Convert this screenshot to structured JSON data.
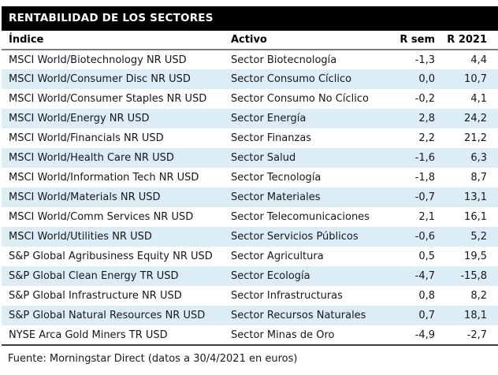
{
  "title": "RENTABILIDAD DE LOS SECTORES",
  "source_note": "Fuente: Morningstar Direct (datos a 30/4/2021 en euros)",
  "colors": {
    "title_bar_bg": "#000000",
    "title_bar_text": "#ffffff",
    "row_alt_bg": "#dcedf6",
    "body_text": "#16161e",
    "header_rule": "#7f7f7f",
    "bottom_rule": "#404040"
  },
  "chart_data": {
    "type": "table",
    "title": "RENTABILIDAD DE LOS SECTORES",
    "columns": [
      "Índice",
      "Activo",
      "R sem",
      "R 2021"
    ],
    "rows": [
      {
        "indice": "MSCI World/Biotechnology NR USD",
        "activo": "Sector Biotecnología",
        "r_sem": "-1,3",
        "r_2021": "4,4"
      },
      {
        "indice": "MSCI World/Consumer Disc NR USD",
        "activo": "Sector Consumo Cíclico",
        "r_sem": "0,0",
        "r_2021": "10,7"
      },
      {
        "indice": "MSCI World/Consumer Staples NR USD",
        "activo": "Sector Consumo No Cíclico",
        "r_sem": "-0,2",
        "r_2021": "4,1"
      },
      {
        "indice": "MSCI World/Energy NR USD",
        "activo": "Sector Energía",
        "r_sem": "2,8",
        "r_2021": "24,2"
      },
      {
        "indice": "MSCI World/Financials NR USD",
        "activo": "Sector Finanzas",
        "r_sem": "2,2",
        "r_2021": "21,2"
      },
      {
        "indice": "MSCI World/Health Care NR USD",
        "activo": "Sector Salud",
        "r_sem": "-1,6",
        "r_2021": "6,3"
      },
      {
        "indice": "MSCI World/Information Tech NR USD",
        "activo": "Sector Tecnología",
        "r_sem": "-1,8",
        "r_2021": "8,7"
      },
      {
        "indice": "MSCI World/Materials NR USD",
        "activo": "Sector Materiales",
        "r_sem": "-0,7",
        "r_2021": "13,1"
      },
      {
        "indice": "MSCI World/Comm Services NR USD",
        "activo": "Sector Telecomunicaciones",
        "r_sem": "2,1",
        "r_2021": "16,1"
      },
      {
        "indice": "MSCI World/Utilities NR USD",
        "activo": "Sector Servicios Públicos",
        "r_sem": "-0,6",
        "r_2021": "5,2"
      },
      {
        "indice": "S&P Global Agribusiness Equity NR USD",
        "activo": "Sector Agricultura",
        "r_sem": "0,5",
        "r_2021": "19,5"
      },
      {
        "indice": "S&P Global Clean Energy TR USD",
        "activo": "Sector Ecología",
        "r_sem": "-4,7",
        "r_2021": "-15,8"
      },
      {
        "indice": "S&P Global Infrastructure NR USD",
        "activo": "Sector Infrastructuras",
        "r_sem": "0,8",
        "r_2021": "8,2"
      },
      {
        "indice": "S&P Global Natural Resources NR USD",
        "activo": "Sector Recursos Naturales",
        "r_sem": "0,7",
        "r_2021": "18,1"
      },
      {
        "indice": "NYSE Arca Gold Miners TR USD",
        "activo": "Sector Minas de Oro",
        "r_sem": "-4,9",
        "r_2021": "-2,7"
      }
    ]
  }
}
